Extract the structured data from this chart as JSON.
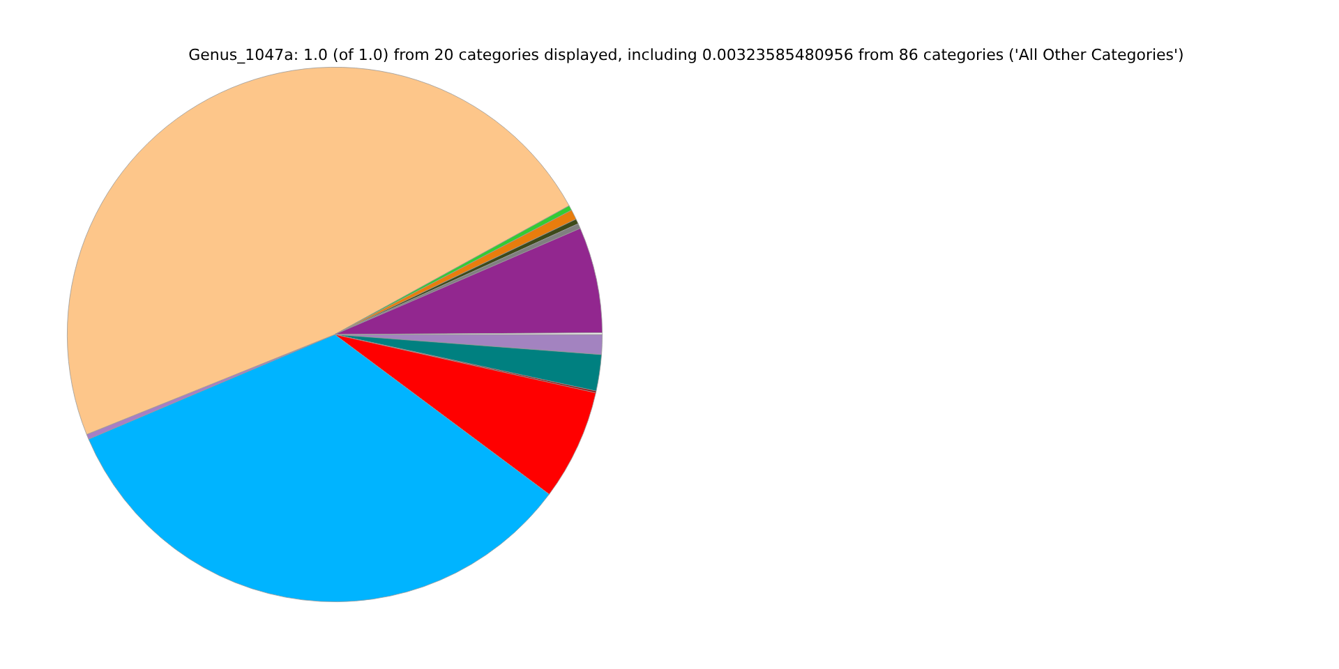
{
  "chart_data": {
    "type": "pie",
    "title": "Genus_1047a: 1.0 (of 1.0) from 20 categories displayed, including 0.00323585480956 from 86 categories ('All Other Categories')",
    "categories": [
      null,
      null,
      null,
      null,
      null,
      null,
      null,
      null,
      null,
      null,
      null,
      null,
      null
    ],
    "values": [
      1.2,
      2.2,
      0.1,
      6.7,
      33.4,
      0.3,
      48.1,
      0.3,
      0.6,
      0.3,
      0.3,
      6.4,
      0.1
    ],
    "colors": [
      "#a383c0",
      "#008080",
      "#8b0000",
      "#ff0000",
      "#00b4ff",
      "#a77fc5",
      "#fdc68a",
      "#33cc33",
      "#e87d0d",
      "#3d4a1a",
      "#808080",
      "#92278f",
      "#f2f2f2"
    ],
    "legend": false
  }
}
